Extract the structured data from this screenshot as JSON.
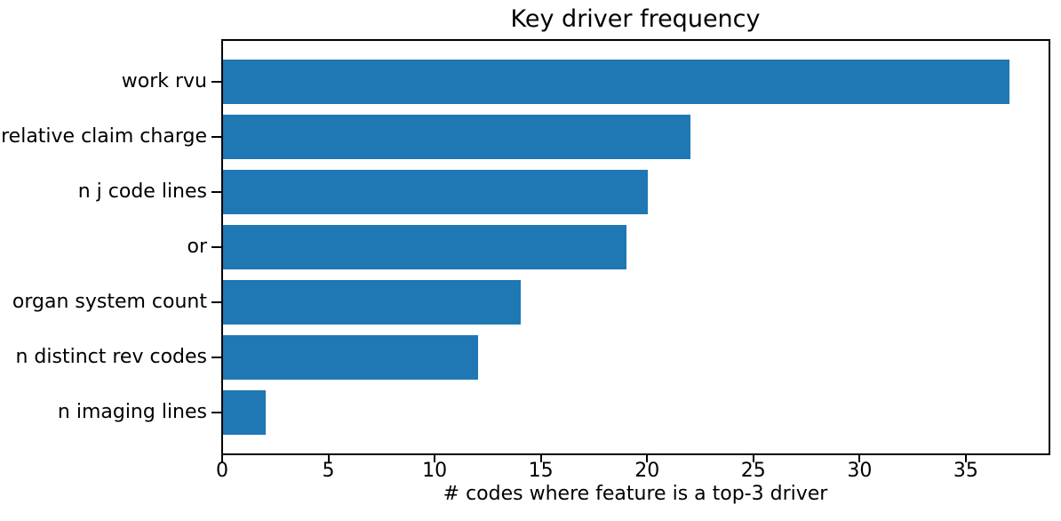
{
  "chart_data": {
    "type": "bar",
    "orientation": "horizontal",
    "title": "Key driver frequency",
    "xlabel": "# codes where feature is a top-3 driver",
    "ylabel": "",
    "categories": [
      "work rvu",
      "relative claim charge",
      "n j code lines",
      "or",
      "organ system count",
      "n distinct rev codes",
      "n imaging lines"
    ],
    "values": [
      37,
      22,
      20,
      19,
      14,
      12,
      2
    ],
    "bar_color": "#1f77b4",
    "axis_color": "#000000",
    "text_color": "#000000",
    "xticks": [
      0,
      5,
      10,
      15,
      20,
      25,
      30,
      35
    ],
    "xlim": [
      0,
      38.85
    ],
    "grid": false,
    "legend": "none"
  }
}
